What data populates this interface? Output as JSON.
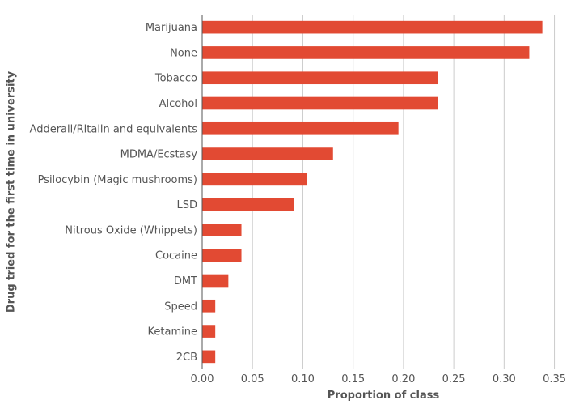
{
  "chart_data": {
    "type": "bar",
    "orientation": "horizontal",
    "categories": [
      "Marijuana",
      "None",
      "Tobacco",
      "Alcohol",
      "Adderall/Ritalin and equivalents",
      "MDMA/Ecstasy",
      "Psilocybin (Magic mushrooms)",
      "LSD",
      "Nitrous Oxide (Whippets)",
      "Cocaine",
      "DMT",
      "Speed",
      "Ketamine",
      "2CB"
    ],
    "values": [
      0.338,
      0.325,
      0.234,
      0.234,
      0.195,
      0.13,
      0.104,
      0.091,
      0.039,
      0.039,
      0.026,
      0.013,
      0.013,
      0.013
    ],
    "xlabel": "Proportion of class",
    "ylabel": "Drug tried for the first time in university",
    "xlim": [
      0,
      0.36
    ],
    "xticks": [
      "0.00",
      "0.05",
      "0.10",
      "0.15",
      "0.20",
      "0.25",
      "0.30",
      "0.35"
    ],
    "grid": "vertical",
    "bar_color": "#e24a33",
    "grid_color": "#cccccc"
  }
}
